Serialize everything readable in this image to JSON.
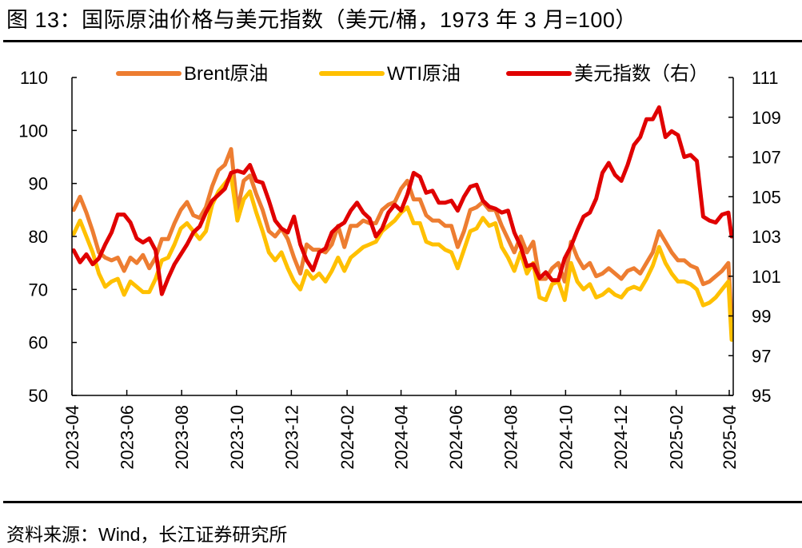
{
  "header": {
    "title": "图 13：国际原油价格与美元指数（美元/桶，1973 年 3 月=100）"
  },
  "footer": {
    "source": "资料来源：Wind，长江证券研究所"
  },
  "chart_data": {
    "type": "line",
    "title": "图 13：国际原油价格与美元指数（美元/桶，1973 年 3 月=100）",
    "xlabel": "",
    "ylabel": "美元/桶",
    "ylabel_right": "1973 年 3 月=100",
    "grid": false,
    "legend_position": "top",
    "x_range": [
      "2023-04",
      "2025-04"
    ],
    "x_tick_labels": [
      "2023-04",
      "2023-06",
      "2023-08",
      "2023-10",
      "2023-12",
      "2024-02",
      "2024-04",
      "2024-06",
      "2024-08",
      "2024-10",
      "2024-12",
      "2025-02",
      "2025-04"
    ],
    "y_left": {
      "min": 50,
      "max": 110,
      "ticks": [
        50,
        60,
        70,
        80,
        90,
        100,
        110
      ]
    },
    "y_right": {
      "min": 95,
      "max": 111,
      "ticks": [
        95,
        97,
        99,
        101,
        103,
        105,
        107,
        109,
        111
      ]
    },
    "x": [
      "2023-04-03",
      "2023-04-10",
      "2023-04-17",
      "2023-04-24",
      "2023-05-01",
      "2023-05-08",
      "2023-05-15",
      "2023-05-22",
      "2023-05-29",
      "2023-06-05",
      "2023-06-12",
      "2023-06-19",
      "2023-06-26",
      "2023-07-03",
      "2023-07-10",
      "2023-07-17",
      "2023-07-24",
      "2023-07-31",
      "2023-08-07",
      "2023-08-14",
      "2023-08-21",
      "2023-08-28",
      "2023-09-04",
      "2023-09-11",
      "2023-09-18",
      "2023-09-25",
      "2023-10-02",
      "2023-10-09",
      "2023-10-16",
      "2023-10-23",
      "2023-10-30",
      "2023-11-06",
      "2023-11-13",
      "2023-11-20",
      "2023-11-27",
      "2023-12-04",
      "2023-12-11",
      "2023-12-18",
      "2023-12-25",
      "2024-01-01",
      "2024-01-08",
      "2024-01-15",
      "2024-01-22",
      "2024-01-29",
      "2024-02-05",
      "2024-02-12",
      "2024-02-19",
      "2024-02-26",
      "2024-03-04",
      "2024-03-11",
      "2024-03-18",
      "2024-03-25",
      "2024-04-01",
      "2024-04-08",
      "2024-04-15",
      "2024-04-22",
      "2024-04-29",
      "2024-05-06",
      "2024-05-13",
      "2024-05-20",
      "2024-05-27",
      "2024-06-03",
      "2024-06-10",
      "2024-06-17",
      "2024-06-24",
      "2024-07-01",
      "2024-07-08",
      "2024-07-15",
      "2024-07-22",
      "2024-07-29",
      "2024-08-05",
      "2024-08-12",
      "2024-08-19",
      "2024-08-26",
      "2024-09-02",
      "2024-09-09",
      "2024-09-16",
      "2024-09-23",
      "2024-09-30",
      "2024-10-07",
      "2024-10-14",
      "2024-10-21",
      "2024-10-28",
      "2024-11-04",
      "2024-11-11",
      "2024-11-18",
      "2024-11-25",
      "2024-12-02",
      "2024-12-09",
      "2024-12-16",
      "2024-12-23",
      "2024-12-30",
      "2025-01-06",
      "2025-01-13",
      "2025-01-20",
      "2025-01-27",
      "2025-02-03",
      "2025-02-10",
      "2025-02-17",
      "2025-02-24",
      "2025-03-03",
      "2025-03-10",
      "2025-03-17",
      "2025-03-24",
      "2025-03-31",
      "2025-04-07"
    ],
    "series": [
      {
        "name": "Brent原油",
        "axis": "left",
        "color": "#ED7D31",
        "values": [
          85,
          87.5,
          84.5,
          81,
          77,
          76,
          75.5,
          76,
          73.5,
          76,
          75,
          76.5,
          74,
          76,
          79.5,
          79.5,
          82.5,
          85,
          86.5,
          84,
          83.5,
          85.5,
          89.5,
          92.5,
          93.5,
          96.5,
          85,
          90.5,
          91.5,
          88,
          85,
          81,
          80,
          81.5,
          79.5,
          76,
          73,
          78.5,
          77.5,
          77.5,
          77,
          78.5,
          82,
          78,
          82,
          82,
          83,
          82.5,
          82.5,
          85,
          86,
          86.5,
          89,
          90.5,
          87,
          87,
          84,
          83,
          83,
          82,
          82,
          78,
          81,
          85,
          85.5,
          86.5,
          85,
          85,
          82,
          79.5,
          77,
          80,
          77,
          79,
          72,
          72,
          74,
          75,
          71.5,
          79,
          76,
          74,
          75,
          72.5,
          73,
          74,
          73,
          72,
          73.5,
          74,
          73,
          75,
          77,
          81,
          79,
          77,
          75.5,
          75.5,
          74.5,
          74,
          71,
          71.5,
          72.5,
          73.5,
          75,
          64
        ]
      },
      {
        "name": "WTI原油",
        "axis": "left",
        "color": "#FFC000",
        "values": [
          80.5,
          83,
          80,
          77,
          73,
          70.5,
          71.5,
          72,
          69,
          71.5,
          70.5,
          69.5,
          69.5,
          72,
          75.5,
          76,
          78.5,
          81.5,
          82.5,
          81,
          79.5,
          81,
          86,
          88.5,
          90,
          91.5,
          83,
          87,
          88.5,
          84.5,
          81,
          77,
          75.5,
          77,
          74,
          71.5,
          70,
          73.5,
          72,
          73,
          71.5,
          73.5,
          76,
          73.5,
          76,
          77,
          78,
          78.5,
          79,
          81,
          82,
          83,
          84.5,
          85.5,
          82.5,
          82.5,
          79,
          78.5,
          78.5,
          77.5,
          77,
          74,
          77.5,
          81,
          81.5,
          83.5,
          82,
          82.5,
          78,
          76,
          73.5,
          77,
          73,
          75,
          68.5,
          68,
          71,
          71.5,
          68,
          75,
          71.5,
          70,
          71,
          68.5,
          69,
          70,
          69,
          68.5,
          70,
          70.5,
          70,
          72,
          74.5,
          78,
          75,
          73,
          71.5,
          71.5,
          71,
          70,
          67,
          67.5,
          68.5,
          70,
          71.5,
          60.5
        ]
      },
      {
        "name": "美元指数（右）",
        "axis": "right",
        "color": "#E00000",
        "values": [
          102.3,
          101.7,
          102.1,
          101.6,
          101.9,
          102.6,
          103.2,
          104.1,
          104.1,
          103.7,
          102.9,
          102.7,
          102.9,
          102.3,
          100.1,
          100.9,
          101.6,
          102.1,
          102.6,
          103.2,
          103.5,
          104.2,
          104.8,
          105.1,
          105.4,
          106.2,
          106.3,
          106.2,
          106.6,
          105.8,
          105.7,
          104.8,
          103.8,
          103.4,
          103.2,
          104.0,
          102.6,
          101.8,
          101.3,
          102.2,
          102.4,
          103.2,
          103.5,
          103.7,
          104.3,
          104.7,
          104.2,
          103.9,
          103.0,
          103.4,
          104.2,
          104.6,
          104.3,
          105.1,
          106.2,
          106.0,
          105.2,
          105.3,
          104.7,
          104.7,
          104.8,
          104.3,
          105.0,
          105.5,
          105.6,
          104.8,
          104.5,
          104.4,
          104.2,
          104.3,
          103.2,
          102.5,
          101.5,
          101.6,
          100.9,
          101.2,
          100.8,
          100.8,
          101.9,
          102.5,
          103.3,
          104.0,
          104.2,
          104.9,
          106.2,
          106.7,
          106.1,
          105.8,
          106.6,
          107.6,
          108.0,
          108.9,
          108.9,
          109.5,
          108.0,
          108.3,
          108.1,
          107.0,
          107.1,
          106.8,
          104.0,
          103.8,
          103.7,
          104.1,
          104.2,
          103.0
        ]
      }
    ]
  }
}
